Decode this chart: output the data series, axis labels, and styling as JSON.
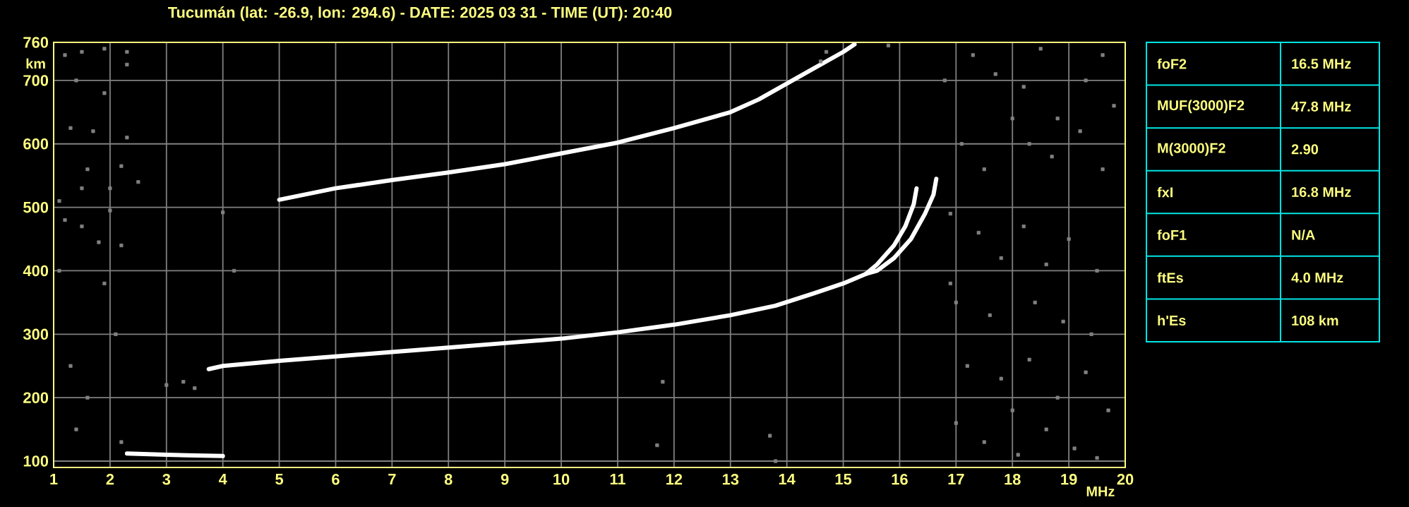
{
  "chart_data": [
    {
      "type": "line",
      "title": "Tucumán (lat: -26.9, lon: 294.6) - DATE: 2025 03 31 - TIME (UT): 20:40",
      "xlabel": "MHz",
      "ylabel": "km",
      "xlim": [
        1,
        20
      ],
      "ylim": [
        90,
        760
      ],
      "xticks": [
        1,
        2,
        3,
        4,
        5,
        6,
        7,
        8,
        9,
        10,
        11,
        12,
        13,
        14,
        15,
        16,
        17,
        18,
        19,
        20
      ],
      "yticks": [
        100,
        200,
        300,
        400,
        500,
        600,
        700,
        760
      ],
      "grid": true,
      "line_style": "solid",
      "series": [
        {
          "type": "scatter",
          "marker": "square",
          "color": "#808080",
          "x": [
            1.2,
            1.5,
            2.3,
            1.9,
            1.4,
            2.3,
            1.9,
            1.3,
            1.7,
            2.3,
            1.6,
            2.2,
            2.5,
            1.5,
            2.0,
            1.1,
            2.0,
            4.0,
            1.2,
            1.5,
            1.8,
            2.2,
            1.1,
            1.9,
            2.1,
            1.3,
            1.6,
            1.4,
            2.2,
            3.0,
            3.3,
            3.5,
            4.2,
            11.8,
            11.7,
            13.7,
            13.8,
            15.8,
            14.6,
            14.7,
            16.8,
            17.3,
            17.7,
            18.2,
            18.5,
            18.8,
            19.3,
            19.6,
            17.1,
            17.5,
            18.0,
            18.3,
            18.7,
            19.2,
            19.6,
            16.9,
            17.4,
            17.8,
            18.2,
            18.6,
            19.0,
            19.5,
            17.0,
            17.6,
            18.4,
            18.9,
            19.4,
            17.2,
            17.8,
            18.3,
            18.8,
            19.3,
            19.7,
            17.0,
            17.5,
            18.1,
            18.6,
            19.1,
            19.5,
            16.9,
            18.0,
            19.8
          ],
          "values": [
            740,
            745,
            745,
            750,
            700,
            725,
            680,
            625,
            620,
            610,
            560,
            565,
            540,
            530,
            530,
            510,
            495,
            492,
            480,
            470,
            445,
            440,
            400,
            380,
            300,
            250,
            200,
            150,
            130,
            220,
            225,
            215,
            400,
            225,
            125,
            140,
            100,
            755,
            730,
            745,
            700,
            740,
            710,
            690,
            750,
            640,
            700,
            740,
            600,
            560,
            640,
            600,
            580,
            620,
            560,
            490,
            460,
            420,
            470,
            410,
            450,
            400,
            350,
            330,
            350,
            320,
            300,
            250,
            230,
            260,
            200,
            240,
            180,
            160,
            130,
            110,
            150,
            120,
            105,
            380,
            180,
            660
          ]
        },
        {
          "type": "line",
          "color": "#ffffff",
          "x": [
            2.3,
            3.0,
            3.5,
            4.0
          ],
          "values": [
            112,
            110,
            109,
            108
          ]
        },
        {
          "type": "line",
          "color": "#ffffff",
          "x": [
            3.75,
            4.0,
            5.0,
            6.0,
            7.0,
            8.0,
            9.0,
            10.0,
            11.0,
            12.0,
            13.0,
            13.8,
            14.5,
            15.0,
            15.4,
            15.6,
            15.9,
            16.1,
            16.25,
            16.3
          ],
          "values": [
            245,
            250,
            258,
            265,
            272,
            279,
            286,
            293,
            303,
            315,
            330,
            345,
            365,
            380,
            395,
            410,
            440,
            470,
            505,
            530
          ]
        },
        {
          "type": "line",
          "color": "#ffffff",
          "x": [
            15.4,
            15.6,
            15.9,
            16.2,
            16.45,
            16.6,
            16.65
          ],
          "values": [
            395,
            400,
            420,
            450,
            490,
            520,
            545
          ]
        },
        {
          "type": "line",
          "color": "#ffffff",
          "x": [
            5.0,
            6.0,
            7.0,
            8.0,
            9.0,
            10.0,
            11.0,
            12.0,
            13.0,
            13.5,
            14.0,
            14.5,
            15.0,
            15.2
          ],
          "values": [
            512,
            530,
            543,
            555,
            568,
            585,
            602,
            625,
            650,
            670,
            695,
            720,
            745,
            757
          ]
        }
      ]
    },
    {
      "type": "other",
      "categories": [
        "foF2",
        "MUF(3000)F2",
        "M(3000)F2",
        "fxI",
        "foF1",
        "ftEs",
        "h'Es"
      ],
      "annotations": [
        "16.5 MHz",
        "47.8 MHz",
        "2.90",
        "16.8 MHz",
        "N/A",
        "4.0 MHz",
        "108 km"
      ]
    }
  ]
}
